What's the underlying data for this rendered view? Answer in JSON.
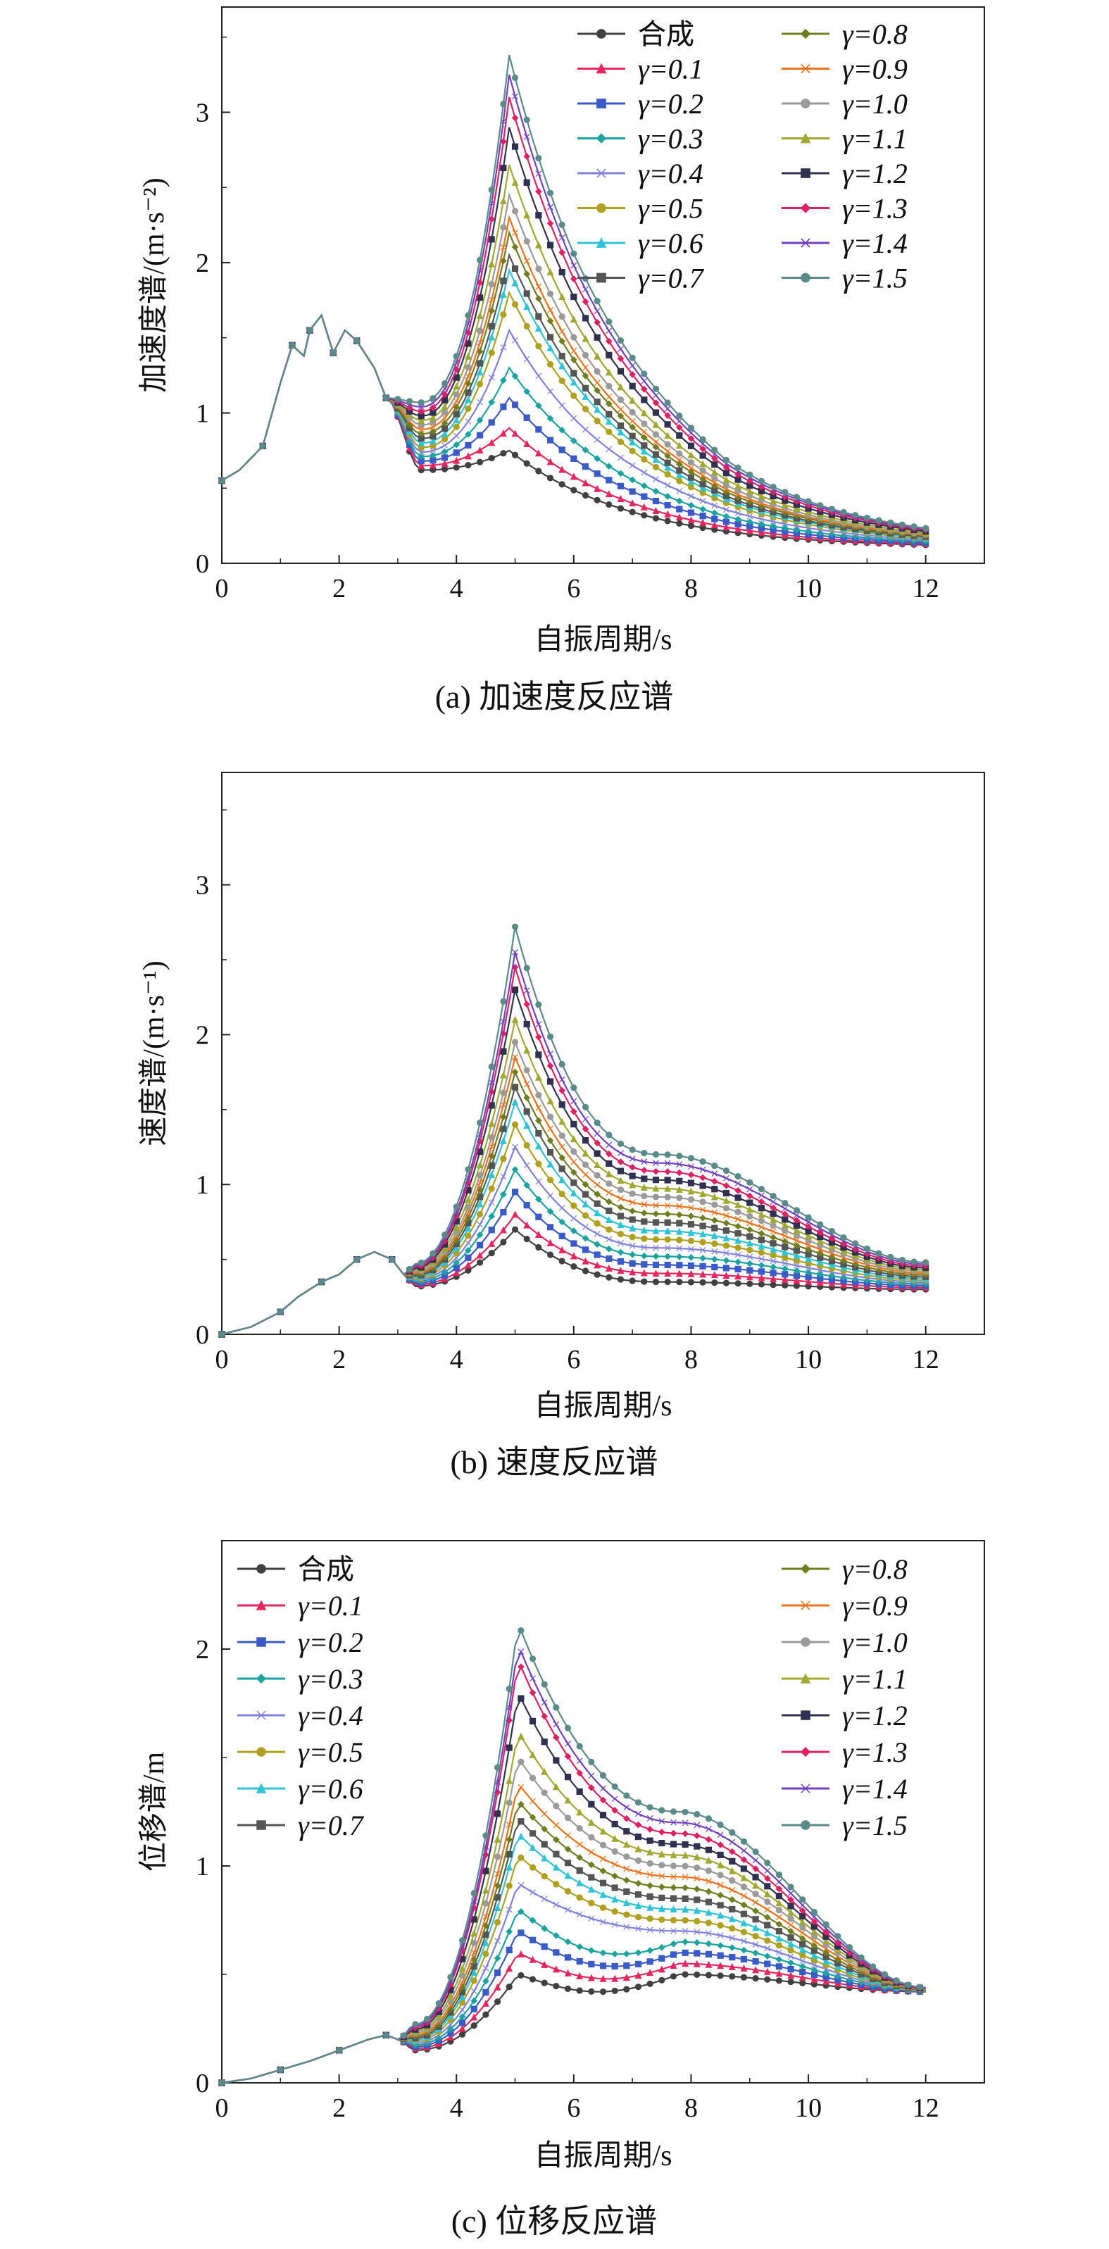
{
  "colors": {
    "合成": "#404040",
    "γ=0.1": "#e8265d",
    "γ=0.2": "#3a5bc7",
    "γ=0.3": "#1aa3a0",
    "γ=0.4": "#8080e0",
    "γ=0.5": "#b0a020",
    "γ=0.6": "#2ec4d6",
    "γ=0.7": "#555555",
    "γ=0.8": "#707d20",
    "γ=0.9": "#f07018",
    "γ=1.0": "#9a9a9a",
    "γ=1.1": "#a0a830",
    "γ=1.2": "#303050",
    "γ=1.3": "#e02060",
    "γ=1.4": "#7040c0",
    "γ=1.5": "#5a8a8a"
  },
  "chart_data": [
    {
      "type": "line",
      "caption": "(a) 加速度反应谱",
      "xlabel": "自振周期/s",
      "ylabel": "加速度谱/(m·s⁻²)",
      "xlim": [
        0,
        13
      ],
      "ylim": [
        0,
        3.7
      ],
      "xticks": [
        0,
        2,
        4,
        6,
        8,
        10,
        12
      ],
      "yticks": [
        0,
        1,
        2,
        3
      ],
      "legend_columns": 2,
      "legend_position": "top-right",
      "series": [
        {
          "name": "合成",
          "peak": 0.75
        },
        {
          "name": "γ=0.1",
          "peak": 0.9
        },
        {
          "name": "γ=0.2",
          "peak": 1.1
        },
        {
          "name": "γ=0.3",
          "peak": 1.3
        },
        {
          "name": "γ=0.4",
          "peak": 1.55
        },
        {
          "name": "γ=0.5",
          "peak": 1.8
        },
        {
          "name": "γ=0.6",
          "peak": 1.95
        },
        {
          "name": "γ=0.7",
          "peak": 2.05
        },
        {
          "name": "γ=0.8",
          "peak": 2.2
        },
        {
          "name": "γ=0.9",
          "peak": 2.3
        },
        {
          "name": "γ=1.0",
          "peak": 2.45
        },
        {
          "name": "γ=1.1",
          "peak": 2.65
        },
        {
          "name": "γ=1.2",
          "peak": 2.9
        },
        {
          "name": "γ=1.3",
          "peak": 3.1
        },
        {
          "name": "γ=1.4",
          "peak": 3.25
        },
        {
          "name": "γ=1.5",
          "peak": 3.38
        }
      ],
      "shared_segment": {
        "x": [
          0,
          0.3,
          0.7,
          1.0,
          1.2,
          1.4,
          1.5,
          1.7,
          1.9,
          2.1,
          2.3,
          2.6,
          2.8
        ],
        "y": [
          0.55,
          0.62,
          0.78,
          1.2,
          1.45,
          1.38,
          1.55,
          1.65,
          1.4,
          1.55,
          1.48,
          1.3,
          1.1
        ]
      }
    },
    {
      "type": "line",
      "caption": "(b) 速度反应谱",
      "xlabel": "自振周期/s",
      "ylabel": "速度谱/(m·s⁻¹)",
      "xlim": [
        0,
        13
      ],
      "ylim": [
        0,
        3.75
      ],
      "xticks": [
        0,
        2,
        4,
        6,
        8,
        10,
        12
      ],
      "yticks": [
        0,
        1,
        2,
        3
      ],
      "legend_columns": 2,
      "legend_position": "top-right",
      "series": [
        {
          "name": "合成",
          "peak": 0.7
        },
        {
          "name": "γ=0.1",
          "peak": 0.8
        },
        {
          "name": "γ=0.2",
          "peak": 0.95
        },
        {
          "name": "γ=0.3",
          "peak": 1.1
        },
        {
          "name": "γ=0.4",
          "peak": 1.25
        },
        {
          "name": "γ=0.5",
          "peak": 1.4
        },
        {
          "name": "γ=0.6",
          "peak": 1.55
        },
        {
          "name": "γ=0.7",
          "peak": 1.65
        },
        {
          "name": "γ=0.8",
          "peak": 1.75
        },
        {
          "name": "γ=0.9",
          "peak": 1.85
        },
        {
          "name": "γ=1.0",
          "peak": 1.95
        },
        {
          "name": "γ=1.1",
          "peak": 2.1
        },
        {
          "name": "γ=1.2",
          "peak": 2.3
        },
        {
          "name": "γ=1.3",
          "peak": 2.45
        },
        {
          "name": "γ=1.4",
          "peak": 2.55
        },
        {
          "name": "γ=1.5",
          "peak": 2.72
        }
      ],
      "shared_segment": {
        "x": [
          0,
          0.5,
          1.0,
          1.3,
          1.7,
          2.0,
          2.3,
          2.6,
          2.9,
          3.1
        ],
        "y": [
          0.0,
          0.05,
          0.15,
          0.25,
          0.35,
          0.4,
          0.5,
          0.55,
          0.5,
          0.4
        ]
      }
    },
    {
      "type": "line",
      "caption": "(c) 位移反应谱",
      "xlabel": "自振周期/s",
      "ylabel": "位移谱/m",
      "xlim": [
        0,
        13
      ],
      "ylim": [
        0,
        2.5
      ],
      "xticks": [
        0,
        2,
        4,
        6,
        8,
        10,
        12
      ],
      "yticks": [
        0,
        1,
        2
      ],
      "legend_columns": 2,
      "legend_position": "top-left and top-right",
      "series": [
        {
          "name": "合成",
          "peak": 0.5
        },
        {
          "name": "γ=0.1",
          "peak": 0.6
        },
        {
          "name": "γ=0.2",
          "peak": 0.7
        },
        {
          "name": "γ=0.3",
          "peak": 0.8
        },
        {
          "name": "γ=0.4",
          "peak": 0.92
        },
        {
          "name": "γ=0.5",
          "peak": 1.05
        },
        {
          "name": "γ=0.6",
          "peak": 1.15
        },
        {
          "name": "γ=0.7",
          "peak": 1.22
        },
        {
          "name": "γ=0.8",
          "peak": 1.3
        },
        {
          "name": "γ=0.9",
          "peak": 1.38
        },
        {
          "name": "γ=1.0",
          "peak": 1.5
        },
        {
          "name": "γ=1.1",
          "peak": 1.62
        },
        {
          "name": "γ=1.2",
          "peak": 1.8
        },
        {
          "name": "γ=1.3",
          "peak": 1.95
        },
        {
          "name": "γ=1.4",
          "peak": 2.02
        },
        {
          "name": "γ=1.5",
          "peak": 2.12
        }
      ],
      "shared_segment": {
        "x": [
          0,
          0.5,
          1.0,
          1.5,
          2.0,
          2.5,
          2.8,
          3.0
        ],
        "y": [
          0.0,
          0.02,
          0.06,
          0.1,
          0.15,
          0.2,
          0.22,
          0.2
        ]
      }
    }
  ]
}
